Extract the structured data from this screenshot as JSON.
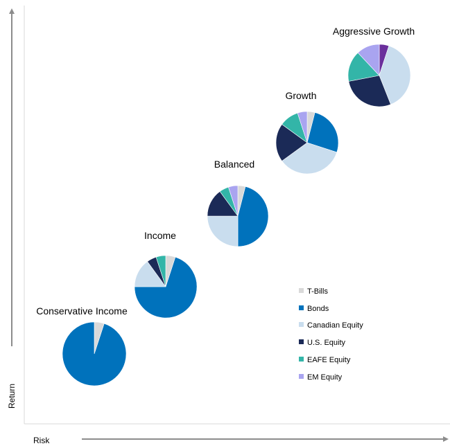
{
  "chart_data": {
    "type": "pie",
    "xlabel": "Risk",
    "ylabel": "Return",
    "legend_position": "bottom-right",
    "grid": false,
    "legend": [
      {
        "name": "T-Bills",
        "color": "#d9d9d9"
      },
      {
        "name": "Bonds",
        "color": "#0072bc"
      },
      {
        "name": "Canadian Equity",
        "color": "#c9ddee"
      },
      {
        "name": "U.S. Equity",
        "color": "#1b2a57"
      },
      {
        "name": "EAFE Equity",
        "color": "#33b5a8"
      },
      {
        "name": "EM Equity",
        "color": "#a9a4f0"
      }
    ],
    "portfolios": [
      {
        "name": "Conservative Income",
        "slices": [
          {
            "label": "T-Bills",
            "value": 5
          },
          {
            "label": "Bonds",
            "value": 95
          }
        ]
      },
      {
        "name": "Income",
        "slices": [
          {
            "label": "T-Bills",
            "value": 5
          },
          {
            "label": "Bonds",
            "value": 70
          },
          {
            "label": "Canadian Equity",
            "value": 15
          },
          {
            "label": "U.S. Equity",
            "value": 5
          },
          {
            "label": "EAFE Equity",
            "value": 5
          }
        ]
      },
      {
        "name": "Balanced",
        "slices": [
          {
            "label": "T-Bills",
            "value": 4
          },
          {
            "label": "Bonds",
            "value": 46
          },
          {
            "label": "Canadian Equity",
            "value": 25
          },
          {
            "label": "U.S. Equity",
            "value": 15
          },
          {
            "label": "EAFE Equity",
            "value": 5
          },
          {
            "label": "EM Equity",
            "value": 5
          }
        ]
      },
      {
        "name": "Growth",
        "slices": [
          {
            "label": "T-Bills",
            "value": 4
          },
          {
            "label": "Bonds",
            "value": 26
          },
          {
            "label": "Canadian Equity",
            "value": 35
          },
          {
            "label": "U.S. Equity",
            "value": 20
          },
          {
            "label": "EAFE Equity",
            "value": 10
          },
          {
            "label": "EM Equity",
            "value": 5
          }
        ]
      },
      {
        "name": "Aggressive Growth",
        "slices": [
          {
            "label": "EM Equity (dark)",
            "value": 5,
            "color": "#6a2f9c"
          },
          {
            "label": "Canadian Equity",
            "value": 39
          },
          {
            "label": "U.S. Equity",
            "value": 28
          },
          {
            "label": "EAFE Equity",
            "value": 16
          },
          {
            "label": "EM Equity",
            "value": 12
          }
        ]
      }
    ]
  }
}
